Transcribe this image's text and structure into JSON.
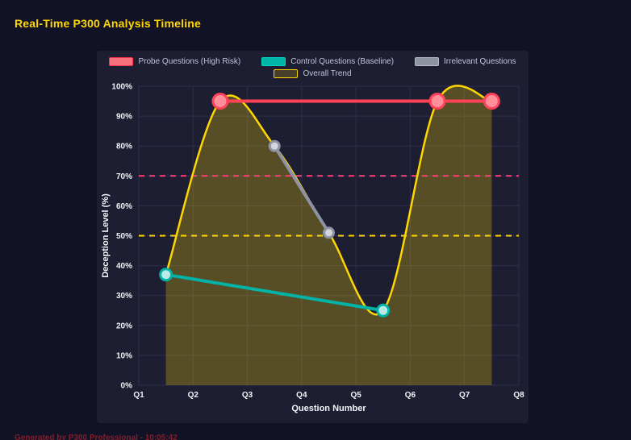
{
  "page": {
    "title": "Real-Time P300 Analysis Timeline",
    "footer": "Generated by P300 Professional - 10:05:42"
  },
  "colors": {
    "page_bg": "#121226",
    "panel_bg": "#1e1e33",
    "title": "#ffd700",
    "grid": "#2e2e4c",
    "axis_text": "#f2f2f7",
    "legend_text": "#bfc3d9",
    "footer_text": "#7d1f2e",
    "area_fill": "rgba(255,215,0,0.26)"
  },
  "chart_data": {
    "type": "line",
    "title": "Real-Time P300 Analysis Timeline",
    "xlabel": "Question Number",
    "ylabel": "Deception Level (%)",
    "xlim": [
      1,
      8
    ],
    "ylim": [
      0,
      100
    ],
    "grid": true,
    "legend_position": "top",
    "x_ticks": [
      {
        "label": "Q1",
        "value": 1
      },
      {
        "label": "Q2",
        "value": 2
      },
      {
        "label": "Q3",
        "value": 3
      },
      {
        "label": "Q4",
        "value": 4
      },
      {
        "label": "Q5",
        "value": 5
      },
      {
        "label": "Q6",
        "value": 6
      },
      {
        "label": "Q7",
        "value": 7
      },
      {
        "label": "Q8",
        "value": 8
      }
    ],
    "y_ticks": [
      {
        "label": "0%",
        "value": 0
      },
      {
        "label": "10%",
        "value": 10
      },
      {
        "label": "20%",
        "value": 20
      },
      {
        "label": "30%",
        "value": 30
      },
      {
        "label": "40%",
        "value": 40
      },
      {
        "label": "50%",
        "value": 50
      },
      {
        "label": "60%",
        "value": 60
      },
      {
        "label": "70%",
        "value": 70
      },
      {
        "label": "80%",
        "value": 80
      },
      {
        "label": "90%",
        "value": 90
      },
      {
        "label": "100%",
        "value": 100
      }
    ],
    "thresholds": [
      {
        "name": "high-risk-threshold",
        "value": 70,
        "color": "#ff3d77",
        "style": "dashed"
      },
      {
        "name": "baseline-threshold",
        "value": 50,
        "color": "#ffd700",
        "style": "dashed"
      }
    ],
    "series": [
      {
        "name": "Probe Questions (High Risk)",
        "color": "#ff4257",
        "point_fill": "#ff8f9b",
        "swatch_fill": "#f8717f",
        "swatch_stroke": "#ff2d4d",
        "line_width": 4,
        "point_radius": 9,
        "smooth": false,
        "fill": false,
        "points": [
          {
            "x": 2.5,
            "y": 95
          },
          {
            "x": 6.5,
            "y": 95
          },
          {
            "x": 7.5,
            "y": 95
          }
        ]
      },
      {
        "name": "Control Questions (Baseline)",
        "color": "#00b3a6",
        "point_fill": "#b8ebe6",
        "swatch_fill": "#00b3a6",
        "swatch_stroke": "#00d8c8",
        "line_width": 4,
        "point_radius": 7,
        "smooth": false,
        "fill": false,
        "points": [
          {
            "x": 1.5,
            "y": 37
          },
          {
            "x": 5.5,
            "y": 25
          }
        ]
      },
      {
        "name": "Irrelevant Questions",
        "color": "#8d93a5",
        "point_fill": "#d3d6dd",
        "swatch_fill": "#8f94a3",
        "swatch_stroke": "#b9bdc9",
        "line_width": 4,
        "point_radius": 6,
        "smooth": false,
        "fill": false,
        "points": [
          {
            "x": 3.5,
            "y": 80
          },
          {
            "x": 4.5,
            "y": 51
          }
        ]
      },
      {
        "name": "Overall Trend",
        "color": "#ffd700",
        "point_fill": "#ffd700",
        "swatch_fill": "rgba(255,215,0,0.18)",
        "swatch_stroke": "#ffd700",
        "line_width": 2.5,
        "point_radius": 0,
        "smooth": true,
        "fill": true,
        "points": [
          {
            "x": 1.5,
            "y": 37
          },
          {
            "x": 2.5,
            "y": 95
          },
          {
            "x": 3.5,
            "y": 80
          },
          {
            "x": 4.5,
            "y": 51
          },
          {
            "x": 5.5,
            "y": 25
          },
          {
            "x": 6.5,
            "y": 95
          },
          {
            "x": 7.5,
            "y": 95
          }
        ]
      }
    ]
  }
}
